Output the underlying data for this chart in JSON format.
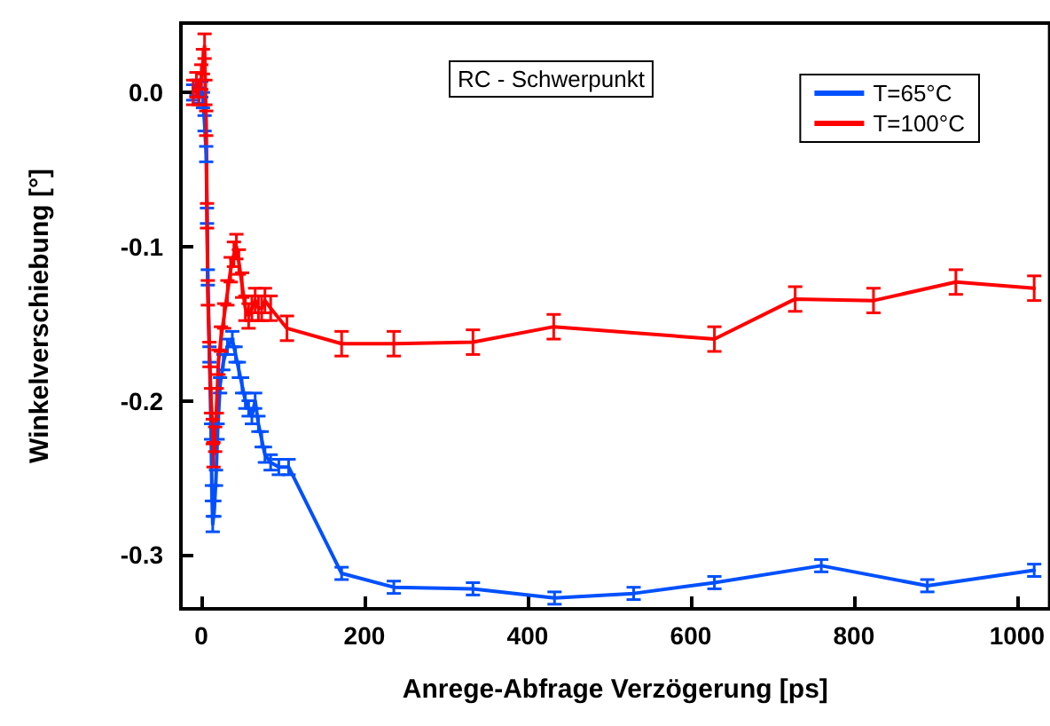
{
  "chart_data": {
    "type": "line",
    "xlabel": "Anrege-Abfrage Verzögerung [ps]",
    "ylabel": "Winkelverschiebung [°]",
    "annotations": [
      "RC - Schwerpunkt"
    ],
    "xlim": [
      -25,
      1040
    ],
    "xticks": [
      0,
      200,
      400,
      600,
      800,
      1000
    ],
    "ylim": [
      -0.335,
      0.045
    ],
    "yticks": [
      {
        "value": 0,
        "label": "0.0"
      },
      {
        "value": -0.1,
        "label": "-0.1"
      },
      {
        "value": -0.2,
        "label": "-0.2"
      },
      {
        "value": -0.3,
        "label": "-0.3"
      }
    ],
    "grid": false,
    "legend": "top right",
    "marker": "none",
    "line_style": "solid",
    "series": [
      {
        "name": "T=65°C",
        "color": "#0050ff",
        "x": [
          -10,
          -6,
          -3,
          0,
          2,
          4,
          6,
          7,
          8,
          10,
          12,
          13,
          14,
          16,
          18,
          20,
          23,
          27,
          32,
          38,
          42,
          46,
          50,
          54,
          58,
          62,
          66,
          70,
          74,
          78,
          85,
          95,
          107,
          172,
          236,
          333,
          433,
          530,
          629,
          760,
          890,
          1021
        ],
        "values": [
          0.0,
          0.003,
          -0.002,
          0.002,
          -0.005,
          -0.02,
          -0.04,
          -0.08,
          -0.12,
          -0.17,
          -0.22,
          -0.26,
          -0.28,
          -0.27,
          -0.25,
          -0.22,
          -0.19,
          -0.175,
          -0.165,
          -0.16,
          -0.17,
          -0.18,
          -0.19,
          -0.2,
          -0.205,
          -0.21,
          -0.2,
          -0.215,
          -0.225,
          -0.235,
          -0.24,
          -0.243,
          -0.243,
          -0.312,
          -0.321,
          -0.322,
          -0.328,
          -0.325,
          -0.318,
          -0.307,
          -0.32,
          -0.31
        ],
        "errors": [
          0.005,
          0.005,
          0.005,
          0.005,
          0.005,
          0.005,
          0.005,
          0.005,
          0.005,
          0.005,
          0.005,
          0.005,
          0.005,
          0.005,
          0.005,
          0.005,
          0.005,
          0.005,
          0.005,
          0.005,
          0.005,
          0.005,
          0.005,
          0.005,
          0.005,
          0.005,
          0.005,
          0.005,
          0.005,
          0.005,
          0.005,
          0.005,
          0.005,
          0.004,
          0.004,
          0.004,
          0.004,
          0.004,
          0.004,
          0.004,
          0.004,
          0.004
        ]
      },
      {
        "name": "T=100°C",
        "color": "#ff0000",
        "x": [
          -10,
          -6,
          -3,
          0,
          2,
          4,
          5,
          6,
          7,
          8,
          10,
          12,
          14,
          15,
          17,
          19,
          21,
          24,
          28,
          32,
          36,
          40,
          43,
          46,
          50,
          54,
          58,
          62,
          66,
          70,
          74,
          78,
          85,
          105,
          172,
          236,
          333,
          432,
          629,
          728,
          824,
          925,
          1021
        ],
        "values": [
          0.0,
          0.005,
          0.0,
          0.01,
          0.02,
          0.03,
          0.0,
          -0.02,
          -0.08,
          -0.13,
          -0.17,
          -0.2,
          -0.22,
          -0.235,
          -0.225,
          -0.2,
          -0.175,
          -0.16,
          -0.145,
          -0.13,
          -0.115,
          -0.105,
          -0.1,
          -0.11,
          -0.125,
          -0.14,
          -0.145,
          -0.14,
          -0.135,
          -0.14,
          -0.14,
          -0.135,
          -0.14,
          -0.153,
          -0.163,
          -0.163,
          -0.162,
          -0.152,
          -0.16,
          -0.134,
          -0.135,
          -0.123,
          -0.127
        ],
        "errors": [
          0.008,
          0.008,
          0.008,
          0.008,
          0.008,
          0.008,
          0.008,
          0.008,
          0.008,
          0.008,
          0.008,
          0.008,
          0.008,
          0.008,
          0.008,
          0.008,
          0.008,
          0.008,
          0.008,
          0.008,
          0.008,
          0.008,
          0.008,
          0.008,
          0.008,
          0.008,
          0.008,
          0.008,
          0.008,
          0.008,
          0.008,
          0.008,
          0.008,
          0.008,
          0.008,
          0.008,
          0.008,
          0.008,
          0.008,
          0.008,
          0.008,
          0.008,
          0.008
        ]
      }
    ]
  }
}
